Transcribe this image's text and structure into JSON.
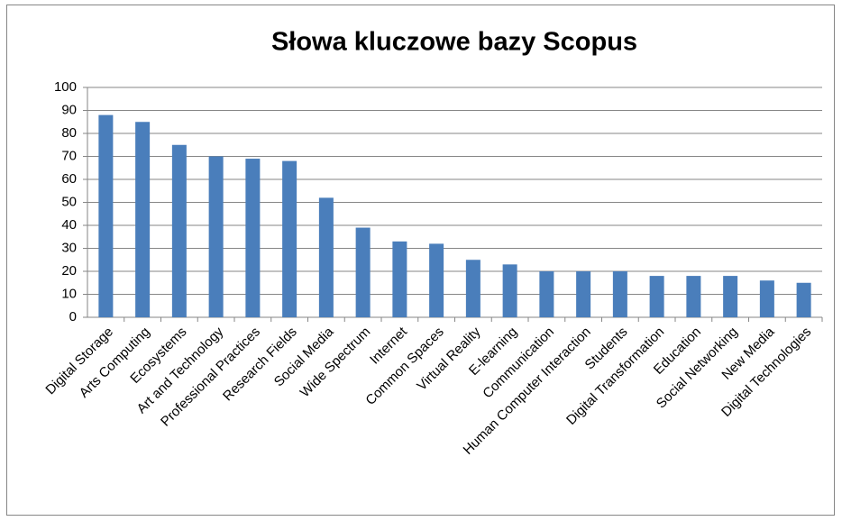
{
  "chart_data": {
    "type": "bar",
    "title": "Słowa kluczowe bazy Scopus",
    "categories": [
      "Digital Storage",
      "Arts Computing",
      "Ecosystems",
      "Art and Technology",
      "Professional Practices",
      "Research Fields",
      "Social Media",
      "Wide Spectrum",
      "Internet",
      "Common Spaces",
      "Virtual Reality",
      "E-learning",
      "Communication",
      "Human Computer Interaction",
      "Students",
      "Digital Transformation",
      "Education",
      "Social Networking",
      "New Media",
      "Digital Technologies"
    ],
    "values": [
      88,
      85,
      75,
      70,
      69,
      68,
      52,
      39,
      33,
      32,
      25,
      23,
      20,
      20,
      20,
      18,
      18,
      18,
      16,
      15
    ],
    "color": "#4a7ebb",
    "ylim": [
      0,
      100
    ],
    "yticks": [
      0,
      10,
      20,
      30,
      40,
      50,
      60,
      70,
      80,
      90,
      100
    ],
    "grid": true
  }
}
